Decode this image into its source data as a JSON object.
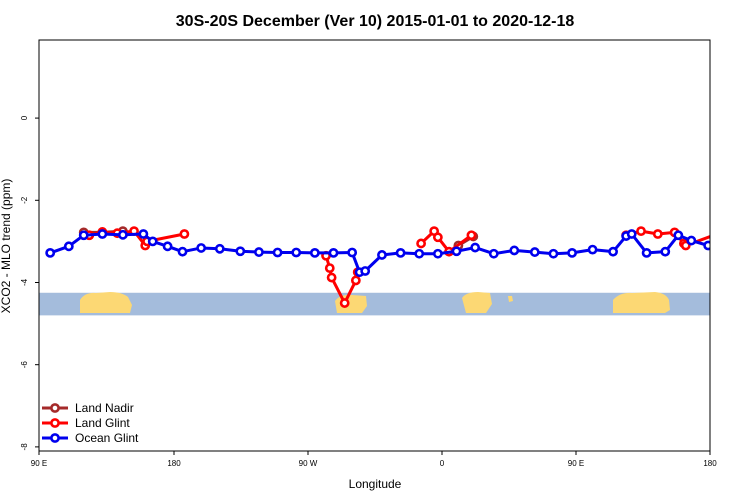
{
  "chart_data": {
    "type": "line",
    "title": "30S-20S December (Ver 10)   2015-01-01 to 2020-12-18",
    "xlabel": "Longitude",
    "ylabel": "XCO2 - MLO trend (ppm)",
    "xlim": [
      90,
      450
    ],
    "ylim": [
      -8.1,
      1.9
    ],
    "x_ticks": [
      {
        "value": 90,
        "label": "90 E"
      },
      {
        "value": 180,
        "label": "180"
      },
      {
        "value": 270,
        "label": "90 W"
      },
      {
        "value": 360,
        "label": "0"
      },
      {
        "value": 450,
        "label": "90 E"
      }
    ],
    "x_ticks_extra": [
      {
        "value": 540,
        "label": "180"
      }
    ],
    "y_ticks": [
      {
        "value": 0,
        "label": "0"
      },
      {
        "value": -2,
        "label": "-2"
      },
      {
        "value": -4,
        "label": "-4"
      },
      {
        "value": -6,
        "label": "-6"
      },
      {
        "value": -8,
        "label": "-8"
      }
    ],
    "grid": false,
    "legend_position": "bottom-left",
    "map_strip": {
      "y_top": -4.25,
      "y_bottom": -4.8,
      "ocean_color": "#a4bcdc",
      "land_color": "#fcd874"
    },
    "series": [
      {
        "name": "Land Nadir",
        "color": "#a52a2a",
        "segments": [
          [
            [
              114,
              -2.78
            ],
            [
              124,
              -2.78
            ],
            [
              135,
              -2.75
            ]
          ],
          [
            [
              315,
              -3.1
            ],
            [
              323,
              -2.88
            ]
          ]
        ]
      },
      {
        "name": "Land Glint",
        "color": "#ff0000",
        "segments": [
          [
            [
              117,
              -2.85
            ],
            [
              124,
              -2.77
            ],
            [
              132,
              -2.8
            ],
            [
              141,
              -2.75
            ],
            [
              147,
              -3.1
            ],
            [
              148,
              -3.0
            ],
            [
              168,
              -2.82
            ]
          ],
          [
            [
              244,
              -3.35
            ],
            [
              246,
              -3.65
            ],
            [
              247,
              -3.88
            ],
            [
              254,
              -4.5
            ],
            [
              260,
              -3.95
            ],
            [
              261,
              -3.75
            ]
          ],
          [
            [
              295,
              -3.05
            ],
            [
              302,
              -2.75
            ],
            [
              304,
              -2.9
            ],
            [
              310,
              -3.25
            ],
            [
              322,
              -2.85
            ]
          ],
          [
            [
              405,
              -2.85
            ],
            [
              413,
              -2.75
            ],
            [
              422,
              -2.82
            ],
            [
              431,
              -2.78
            ],
            [
              436,
              -3.05
            ],
            [
              437,
              -3.1
            ],
            [
              455,
              -2.8
            ]
          ]
        ]
      },
      {
        "name": "Ocean Glint",
        "color": "#0000ee",
        "segments": [
          [
            [
              96,
              -3.28
            ],
            [
              106,
              -3.12
            ],
            [
              114,
              -2.85
            ],
            [
              124,
              -2.82
            ],
            [
              135,
              -2.84
            ],
            [
              146,
              -2.82
            ],
            [
              151,
              -3.0
            ],
            [
              159,
              -3.12
            ],
            [
              167,
              -3.25
            ],
            [
              177,
              -3.16
            ],
            [
              187,
              -3.18
            ],
            [
              198,
              -3.24
            ],
            [
              208,
              -3.26
            ],
            [
              218,
              -3.27
            ],
            [
              228,
              -3.27
            ],
            [
              238,
              -3.28
            ],
            [
              248,
              -3.28
            ],
            [
              258,
              -3.27
            ],
            [
              262,
              -3.75
            ],
            [
              265,
              -3.72
            ],
            [
              274,
              -3.33
            ],
            [
              284,
              -3.28
            ],
            [
              294,
              -3.3
            ],
            [
              304,
              -3.3
            ],
            [
              314,
              -3.24
            ],
            [
              324,
              -3.15
            ],
            [
              334,
              -3.3
            ],
            [
              345,
              -3.22
            ],
            [
              356,
              -3.26
            ],
            [
              366,
              -3.3
            ],
            [
              376,
              -3.28
            ],
            [
              387,
              -3.2
            ],
            [
              398,
              -3.25
            ],
            [
              405,
              -2.87
            ],
            [
              408,
              -2.82
            ],
            [
              416,
              -3.28
            ],
            [
              426,
              -3.25
            ],
            [
              433,
              -2.85
            ],
            [
              440,
              -2.98
            ],
            [
              449,
              -3.1
            ],
            [
              459,
              -3.25
            ]
          ]
        ]
      }
    ]
  }
}
